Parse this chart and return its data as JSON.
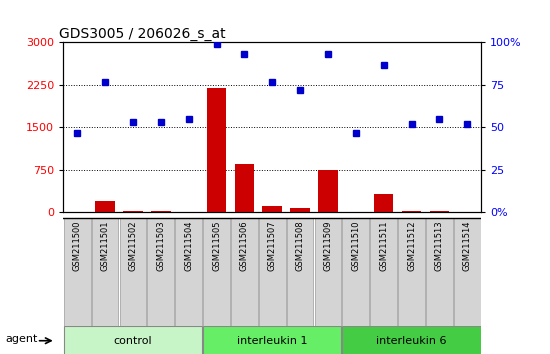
{
  "title": "GDS3005 / 206026_s_at",
  "samples": [
    "GSM211500",
    "GSM211501",
    "GSM211502",
    "GSM211503",
    "GSM211504",
    "GSM211505",
    "GSM211506",
    "GSM211507",
    "GSM211508",
    "GSM211509",
    "GSM211510",
    "GSM211511",
    "GSM211512",
    "GSM211513",
    "GSM211514"
  ],
  "count_values": [
    10,
    200,
    30,
    20,
    15,
    2200,
    850,
    120,
    80,
    750,
    5,
    320,
    20,
    25,
    15
  ],
  "percentile_values": [
    47,
    77,
    53,
    53,
    55,
    99,
    93,
    77,
    72,
    93,
    47,
    87,
    52,
    55,
    52
  ],
  "groups": [
    {
      "label": "control",
      "start": 0,
      "end": 4,
      "color": "#c8f5c8"
    },
    {
      "label": "interleukin 1",
      "start": 5,
      "end": 9,
      "color": "#66ee66"
    },
    {
      "label": "interleukin 6",
      "start": 10,
      "end": 14,
      "color": "#44cc44"
    }
  ],
  "left_ylim": [
    0,
    3000
  ],
  "right_ylim": [
    0,
    100
  ],
  "left_yticks": [
    0,
    750,
    1500,
    2250,
    3000
  ],
  "right_yticks": [
    0,
    25,
    50,
    75,
    100
  ],
  "left_ytick_labels": [
    "0",
    "750",
    "1500",
    "2250",
    "3000"
  ],
  "right_ytick_labels": [
    "0%",
    "25",
    "50",
    "75",
    "100%"
  ],
  "bar_color": "#cc0000",
  "dot_color": "#0000cc",
  "title_fontsize": 10,
  "tick_fontsize": 8,
  "label_fontsize": 6,
  "group_fontsize": 8,
  "legend_fontsize": 8,
  "sample_box_color": "#d4d4d4",
  "sample_box_edge": "#999999",
  "plot_bg": "#ffffff",
  "fig_bg": "#ffffff"
}
